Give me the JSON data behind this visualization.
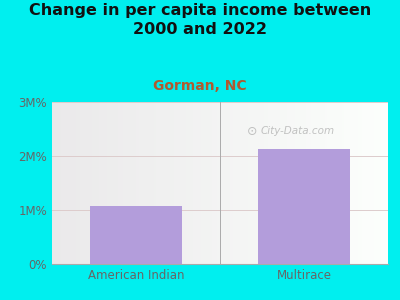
{
  "categories": [
    "American Indian",
    "Multirace"
  ],
  "values": [
    1.07,
    2.13
  ],
  "bar_color": "#b39ddb",
  "background_color": "#00efef",
  "title": "Change in per capita income between\n2000 and 2022",
  "subtitle": "Gorman, NC",
  "subtitle_color": "#b05a2f",
  "title_fontsize": 11.5,
  "subtitle_fontsize": 10,
  "yticks": [
    0,
    1,
    2,
    3
  ],
  "ytick_labels": [
    "0%",
    "1M%",
    "2M%",
    "3M%"
  ],
  "ylim": [
    0,
    3.0
  ],
  "watermark": "City-Data.com",
  "gridline_color": "#ddcccc",
  "axis_color": "#aaaaaa",
  "tick_color": "#666666"
}
